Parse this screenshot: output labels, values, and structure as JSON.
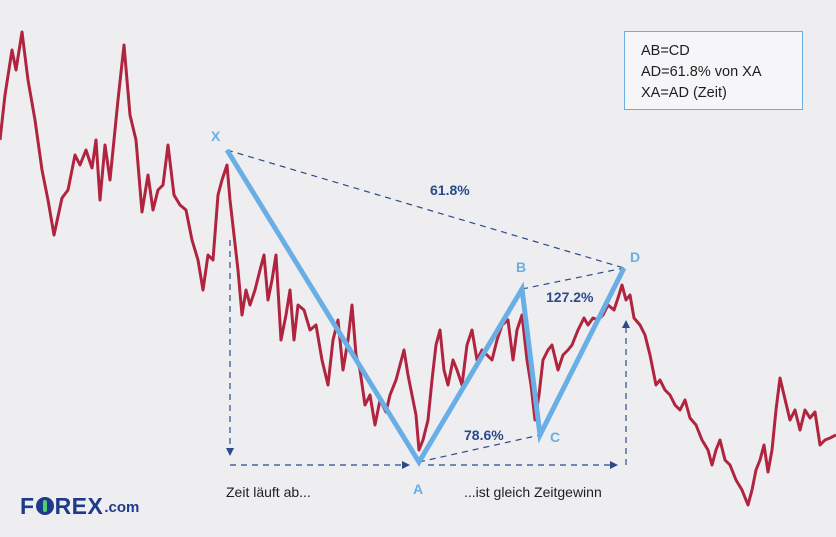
{
  "points": {
    "X": "X",
    "A": "A",
    "B": "B",
    "C": "C",
    "D": "D"
  },
  "ratios": {
    "XD": "61.8%",
    "BD": "127.2%",
    "AC": "78.6%"
  },
  "captions": {
    "left": "Zeit läuft ab...",
    "right": "...ist gleich Zeitgewinn"
  },
  "rules": [
    "AB=CD",
    "AD=61.8% von XA",
    "XA=AD (Zeit)"
  ],
  "logo": {
    "text_before": "F",
    "text_after": "REX",
    "suffix": ".com"
  },
  "colors": {
    "price_line": "#b0243f",
    "pattern": "#6aaee6",
    "guides": "#2b4a8a",
    "brand": "#1e3a8a",
    "brand_accent": "#4fcf6e"
  }
}
